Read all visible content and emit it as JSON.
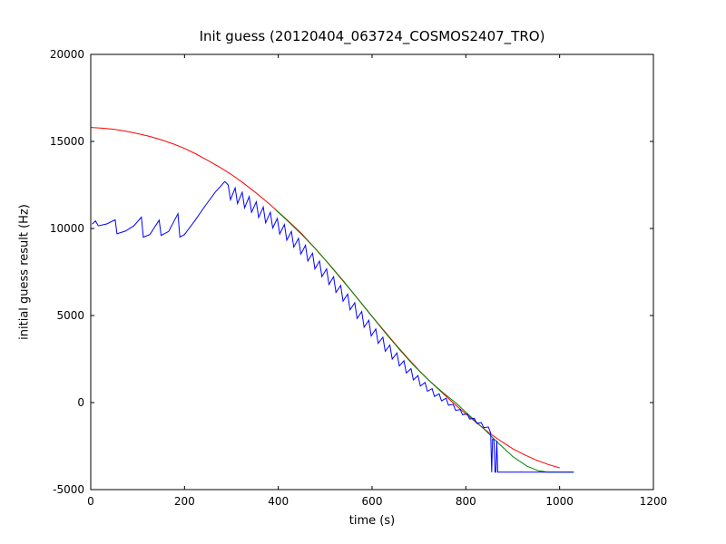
{
  "chart_data": {
    "type": "line",
    "title": "Init guess (20120404_063724_COSMOS2407_TRO)",
    "xlabel": "time (s)",
    "ylabel": "initial guess result (Hz)",
    "xlim": [
      0,
      1200
    ],
    "ylim": [
      -5000,
      20000
    ],
    "xticks": [
      0,
      200,
      400,
      600,
      800,
      1000,
      1200
    ],
    "yticks": [
      -5000,
      0,
      5000,
      10000,
      15000,
      20000
    ],
    "grid": false,
    "legend": null,
    "frame_color": "#000000",
    "series": [
      {
        "name": "red-smooth-model-curve",
        "color": "#ff0000",
        "points": [
          [
            0,
            15800
          ],
          [
            25,
            15760
          ],
          [
            50,
            15700
          ],
          [
            75,
            15590
          ],
          [
            100,
            15450
          ],
          [
            125,
            15290
          ],
          [
            150,
            15100
          ],
          [
            175,
            14870
          ],
          [
            200,
            14600
          ],
          [
            225,
            14270
          ],
          [
            250,
            13900
          ],
          [
            275,
            13520
          ],
          [
            300,
            13100
          ],
          [
            325,
            12620
          ],
          [
            350,
            12100
          ],
          [
            375,
            11540
          ],
          [
            400,
            10950
          ],
          [
            425,
            10340
          ],
          [
            450,
            9700
          ],
          [
            475,
            8960
          ],
          [
            500,
            8200
          ],
          [
            525,
            7400
          ],
          [
            550,
            6600
          ],
          [
            575,
            5780
          ],
          [
            600,
            4950
          ],
          [
            625,
            4150
          ],
          [
            650,
            3350
          ],
          [
            675,
            2580
          ],
          [
            700,
            1850
          ],
          [
            725,
            1180
          ],
          [
            750,
            550
          ],
          [
            775,
            -60
          ],
          [
            800,
            -650
          ],
          [
            825,
            -1210
          ],
          [
            850,
            -1750
          ],
          [
            875,
            -2220
          ],
          [
            900,
            -2650
          ],
          [
            925,
            -3000
          ],
          [
            950,
            -3300
          ],
          [
            975,
            -3550
          ],
          [
            1000,
            -3750
          ]
        ]
      },
      {
        "name": "green-smooth-fit-curve",
        "color": "#008000",
        "points": [
          [
            395,
            11050
          ],
          [
            420,
            10430
          ],
          [
            450,
            9650
          ],
          [
            480,
            8820
          ],
          [
            510,
            7900
          ],
          [
            540,
            6950
          ],
          [
            570,
            5950
          ],
          [
            600,
            4950
          ],
          [
            630,
            3950
          ],
          [
            660,
            3000
          ],
          [
            690,
            2100
          ],
          [
            720,
            1300
          ],
          [
            750,
            600
          ],
          [
            780,
            -50
          ],
          [
            810,
            -800
          ],
          [
            840,
            -1550
          ],
          [
            870,
            -2350
          ],
          [
            900,
            -3100
          ],
          [
            930,
            -3650
          ],
          [
            955,
            -3920
          ],
          [
            975,
            -4000
          ],
          [
            1030,
            -4000
          ]
        ]
      },
      {
        "name": "blue-initial-guess-signal",
        "color": "#0000ff",
        "points": [
          [
            3,
            10250
          ],
          [
            10,
            10430
          ],
          [
            16,
            10150
          ],
          [
            34,
            10260
          ],
          [
            52,
            10500
          ],
          [
            56,
            9700
          ],
          [
            74,
            9850
          ],
          [
            92,
            10150
          ],
          [
            108,
            10650
          ],
          [
            112,
            9500
          ],
          [
            126,
            9650
          ],
          [
            146,
            10480
          ],
          [
            150,
            9600
          ],
          [
            166,
            9830
          ],
          [
            186,
            10850
          ],
          [
            190,
            9500
          ],
          [
            200,
            9650
          ],
          [
            222,
            10450
          ],
          [
            244,
            11300
          ],
          [
            266,
            12100
          ],
          [
            286,
            12700
          ],
          [
            293,
            12500
          ],
          [
            298,
            11650
          ],
          [
            308,
            12330
          ],
          [
            313,
            11430
          ],
          [
            323,
            12080
          ],
          [
            328,
            11180
          ],
          [
            338,
            11830
          ],
          [
            343,
            10930
          ],
          [
            353,
            11530
          ],
          [
            358,
            10630
          ],
          [
            368,
            11230
          ],
          [
            373,
            10330
          ],
          [
            383,
            10930
          ],
          [
            388,
            10030
          ],
          [
            398,
            10580
          ],
          [
            403,
            9680
          ],
          [
            413,
            10230
          ],
          [
            418,
            9330
          ],
          [
            428,
            9830
          ],
          [
            433,
            8930
          ],
          [
            443,
            9430
          ],
          [
            448,
            8530
          ],
          [
            458,
            9030
          ],
          [
            463,
            8130
          ],
          [
            473,
            8580
          ],
          [
            478,
            7680
          ],
          [
            488,
            8130
          ],
          [
            493,
            7230
          ],
          [
            503,
            7680
          ],
          [
            508,
            6780
          ],
          [
            518,
            7230
          ],
          [
            523,
            6330
          ],
          [
            533,
            6730
          ],
          [
            538,
            5830
          ],
          [
            548,
            6230
          ],
          [
            553,
            5330
          ],
          [
            563,
            5730
          ],
          [
            568,
            4830
          ],
          [
            578,
            5230
          ],
          [
            583,
            4330
          ],
          [
            593,
            4730
          ],
          [
            598,
            3830
          ],
          [
            608,
            4230
          ],
          [
            613,
            3400
          ],
          [
            623,
            3750
          ],
          [
            628,
            2950
          ],
          [
            638,
            3300
          ],
          [
            643,
            2500
          ],
          [
            653,
            2850
          ],
          [
            658,
            2100
          ],
          [
            668,
            2400
          ],
          [
            673,
            1700
          ],
          [
            683,
            1950
          ],
          [
            688,
            1300
          ],
          [
            698,
            1550
          ],
          [
            703,
            950
          ],
          [
            713,
            1150
          ],
          [
            718,
            650
          ],
          [
            728,
            800
          ],
          [
            733,
            350
          ],
          [
            743,
            500
          ],
          [
            748,
            100
          ],
          [
            758,
            250
          ],
          [
            763,
            -150
          ],
          [
            773,
            -100
          ],
          [
            778,
            -450
          ],
          [
            788,
            -400
          ],
          [
            793,
            -700
          ],
          [
            803,
            -650
          ],
          [
            808,
            -950
          ],
          [
            818,
            -900
          ],
          [
            823,
            -1200
          ],
          [
            833,
            -1150
          ],
          [
            838,
            -1450
          ],
          [
            848,
            -1400
          ],
          [
            853,
            -1750
          ],
          [
            855,
            -4000
          ],
          [
            857,
            -2100
          ],
          [
            860,
            -2150
          ],
          [
            862,
            -4000
          ],
          [
            864,
            -4000
          ],
          [
            866,
            -2200
          ],
          [
            868,
            -4000
          ],
          [
            1030,
            -4000
          ]
        ]
      }
    ]
  }
}
